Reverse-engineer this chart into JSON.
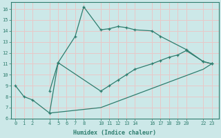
{
  "xlabel": "Humidex (Indice chaleur)",
  "bg_color": "#cce8e8",
  "line_color": "#2e7d6e",
  "grid_color": "#e8c8c8",
  "xlim": [
    -0.5,
    23.8
  ],
  "ylim": [
    6.0,
    16.6
  ],
  "xticks": [
    0,
    1,
    2,
    4,
    5,
    6,
    7,
    8,
    10,
    11,
    12,
    13,
    14,
    16,
    17,
    18,
    19,
    20,
    22,
    23
  ],
  "yticks": [
    6,
    7,
    8,
    9,
    10,
    11,
    12,
    13,
    14,
    15,
    16
  ],
  "line1_x": [
    0,
    1,
    2,
    4,
    5,
    7,
    8,
    10,
    11,
    12,
    13,
    14,
    16,
    17,
    20,
    22,
    23
  ],
  "line1_y": [
    9.0,
    8.0,
    7.7,
    6.5,
    11.1,
    13.5,
    16.2,
    14.1,
    14.2,
    14.4,
    14.3,
    14.1,
    14.0,
    13.5,
    12.3,
    11.2,
    11.0
  ],
  "line2_x": [
    4,
    5,
    10,
    11,
    12,
    13,
    14,
    16,
    17,
    18,
    19,
    20,
    22,
    23
  ],
  "line2_y": [
    8.5,
    11.1,
    8.5,
    9.0,
    9.5,
    10.0,
    10.5,
    11.0,
    11.3,
    11.6,
    11.8,
    12.2,
    11.2,
    11.0
  ],
  "line3_x": [
    4,
    10,
    22,
    23
  ],
  "line3_y": [
    6.5,
    7.0,
    10.5,
    11.0
  ]
}
